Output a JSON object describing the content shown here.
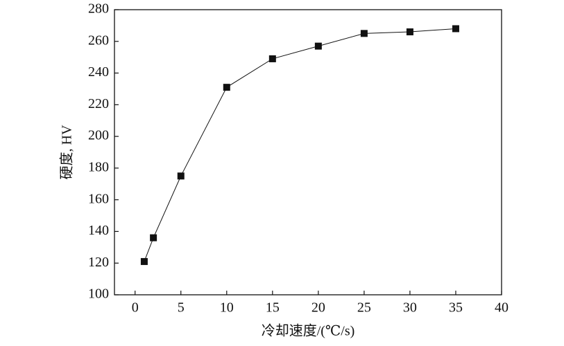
{
  "chart_data": {
    "type": "line",
    "x_label": "冷却速度/(℃/s)",
    "y_label": "硬度, HV",
    "x": [
      1,
      2,
      5,
      10,
      15,
      20,
      25,
      30,
      35
    ],
    "series": [
      {
        "color": "#111111",
        "values": [
          121,
          136,
          175,
          231,
          249,
          257,
          265,
          266,
          268
        ]
      }
    ],
    "xlim": [
      -2.25,
      40
    ],
    "xticks": [
      0,
      5,
      10,
      15,
      20,
      25,
      30,
      35,
      40
    ],
    "ylim": [
      100,
      280
    ],
    "yticks": [
      100,
      120,
      140,
      160,
      180,
      200,
      220,
      240,
      260,
      280
    ]
  }
}
